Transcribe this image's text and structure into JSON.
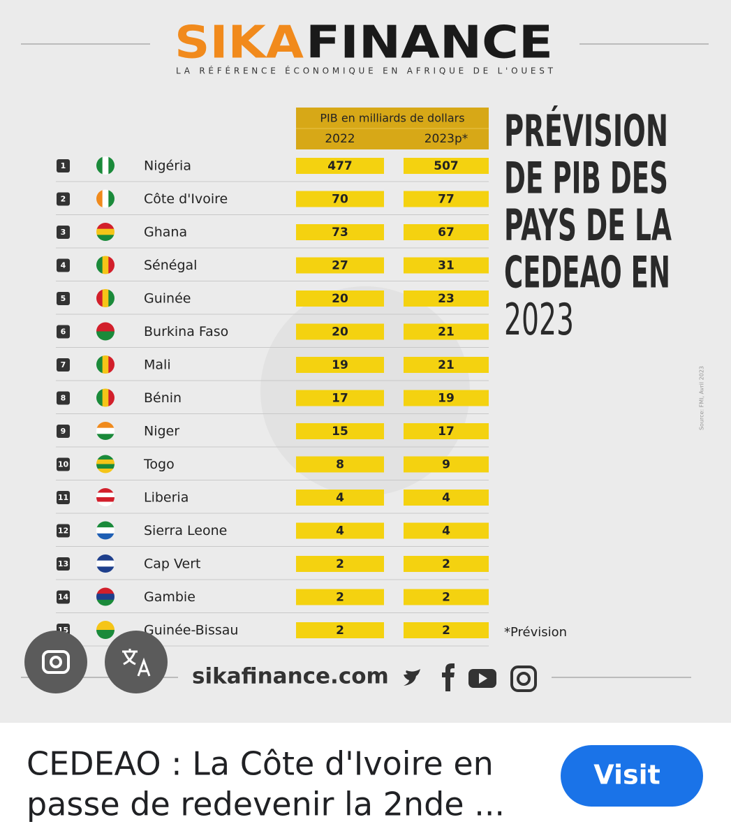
{
  "header": {
    "logo_left": "SIKA",
    "logo_right": "FINANCE",
    "tagline": "LA RÉFÉRENCE ÉCONOMIQUE EN AFRIQUE DE L'OUEST"
  },
  "table": {
    "group_header": "PIB en milliards de dollars",
    "columns": [
      "2022",
      "2023p*"
    ],
    "rows": [
      {
        "rank": 1,
        "country": "Nigéria",
        "v2022": 477,
        "v2023": 507
      },
      {
        "rank": 2,
        "country": "Côte d'Ivoire",
        "v2022": 70,
        "v2023": 77
      },
      {
        "rank": 3,
        "country": "Ghana",
        "v2022": 73,
        "v2023": 67
      },
      {
        "rank": 4,
        "country": "Sénégal",
        "v2022": 27,
        "v2023": 31
      },
      {
        "rank": 5,
        "country": "Guinée",
        "v2022": 20,
        "v2023": 23
      },
      {
        "rank": 6,
        "country": "Burkina Faso",
        "v2022": 20,
        "v2023": 21
      },
      {
        "rank": 7,
        "country": "Mali",
        "v2022": 19,
        "v2023": 21
      },
      {
        "rank": 8,
        "country": "Bénin",
        "v2022": 17,
        "v2023": 19
      },
      {
        "rank": 9,
        "country": "Niger",
        "v2022": 15,
        "v2023": 17
      },
      {
        "rank": 10,
        "country": "Togo",
        "v2022": 8,
        "v2023": 9
      },
      {
        "rank": 11,
        "country": "Liberia",
        "v2022": 4,
        "v2023": 4
      },
      {
        "rank": 12,
        "country": "Sierra Leone",
        "v2022": 4,
        "v2023": 4
      },
      {
        "rank": 13,
        "country": "Cap Vert",
        "v2022": 2,
        "v2023": 2
      },
      {
        "rank": 14,
        "country": "Gambie",
        "v2022": 2,
        "v2023": 2
      },
      {
        "rank": 15,
        "country": "Guinée-Bissau",
        "v2022": 2,
        "v2023": 2
      }
    ]
  },
  "title_lines": [
    "PRÉVISION",
    "DE PIB DES",
    "PAYS DE LA",
    "CEDEAO EN",
    "2023"
  ],
  "source": "Source: FMI, Avril 2023",
  "footnote": "*Prévision",
  "website": "sikafinance.com",
  "caption_lines": [
    "CEDEAO : La Côte d'Ivoire en",
    "passe de redevenir la 2nde ..."
  ],
  "button": "Visit"
}
